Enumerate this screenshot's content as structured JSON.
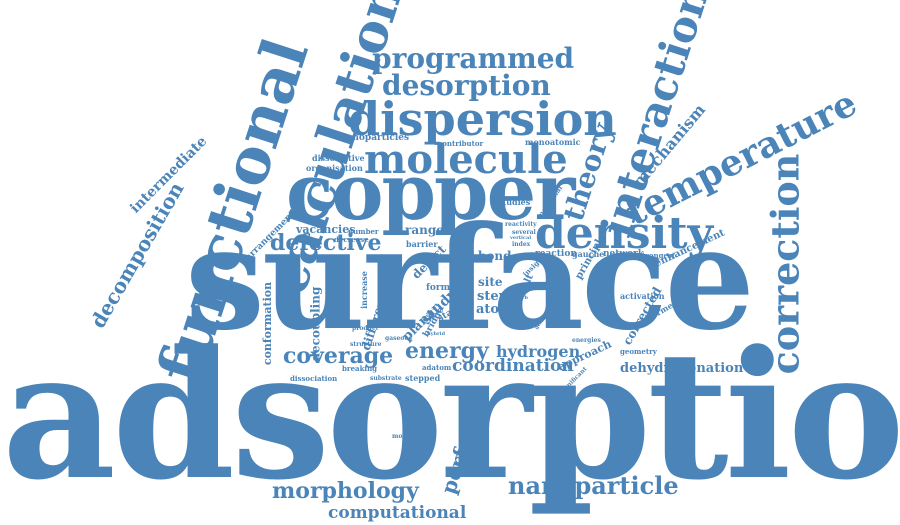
{
  "color": "#4a84b8",
  "words": [
    {
      "text": "adsorption",
      "size": "large"
    },
    {
      "text": "surface",
      "size": "large"
    },
    {
      "text": "copper",
      "size": "large"
    },
    {
      "text": "functional",
      "size": "large"
    },
    {
      "text": "calculation",
      "size": "large"
    },
    {
      "text": "dispersion",
      "size": "large"
    },
    {
      "text": "molecule",
      "size": "large"
    },
    {
      "text": "density",
      "size": "large"
    },
    {
      "text": "interaction",
      "size": "large"
    },
    {
      "text": "temperature",
      "size": "large"
    },
    {
      "text": "correction",
      "size": "large"
    },
    {
      "text": "programmed",
      "size": "medium"
    },
    {
      "text": "desorption",
      "size": "medium"
    },
    {
      "text": "theory",
      "size": "medium"
    },
    {
      "text": "energy",
      "size": "medium"
    },
    {
      "text": "coverage",
      "size": "medium"
    },
    {
      "text": "defective",
      "size": "medium"
    },
    {
      "text": "decomposition",
      "size": "medium"
    },
    {
      "text": "intermediate",
      "size": "medium"
    },
    {
      "text": "mechanism",
      "size": "medium"
    },
    {
      "text": "morphology",
      "size": "medium"
    },
    {
      "text": "nanoparticle",
      "size": "medium"
    },
    {
      "text": "computational",
      "size": "medium"
    },
    {
      "text": "perfect",
      "size": "medium"
    },
    {
      "text": "coordination",
      "size": "medium"
    },
    {
      "text": "hydrogen",
      "size": "medium"
    },
    {
      "text": "dehydrogenation",
      "size": "medium"
    },
    {
      "text": "corrected",
      "size": "small"
    },
    {
      "text": "conformation",
      "size": "small"
    },
    {
      "text": "decoupling",
      "size": "small"
    },
    {
      "text": "different",
      "size": "small"
    },
    {
      "text": "planar",
      "size": "small"
    },
    {
      "text": "study",
      "size": "small"
    },
    {
      "text": "atom",
      "size": "small"
    },
    {
      "text": "step",
      "size": "small"
    },
    {
      "text": "site",
      "size": "small"
    },
    {
      "text": "bond",
      "size": "small"
    },
    {
      "text": "defect",
      "size": "small"
    },
    {
      "text": "range",
      "size": "small"
    },
    {
      "text": "vacancies",
      "size": "small"
    },
    {
      "text": "arrangement",
      "size": "small"
    },
    {
      "text": "approach",
      "size": "small"
    },
    {
      "text": "principle",
      "size": "small"
    },
    {
      "text": "enhancement",
      "size": "small"
    },
    {
      "text": "network",
      "size": "small"
    },
    {
      "text": "reaction",
      "size": "small"
    },
    {
      "text": "gauche",
      "size": "small"
    },
    {
      "text": "strongest",
      "size": "small"
    },
    {
      "text": "nanoparticles",
      "size": "small"
    },
    {
      "text": "dissociative",
      "size": "small"
    },
    {
      "text": "organisation",
      "size": "small"
    },
    {
      "text": "contributor",
      "size": "small"
    },
    {
      "text": "monoatomic",
      "size": "small"
    },
    {
      "text": "studies",
      "size": "small"
    },
    {
      "text": "molecular",
      "size": "small"
    },
    {
      "text": "reactivity",
      "size": "small"
    },
    {
      "text": "several",
      "size": "small"
    },
    {
      "text": "vertical",
      "size": "small"
    },
    {
      "text": "index",
      "size": "small"
    },
    {
      "text": "barrier",
      "size": "small"
    },
    {
      "text": "decrease",
      "size": "small"
    },
    {
      "text": "number",
      "size": "small"
    },
    {
      "text": "increase",
      "size": "small"
    },
    {
      "text": "form",
      "size": "small"
    },
    {
      "text": "bridge",
      "size": "small"
    },
    {
      "text": "stable",
      "size": "small"
    },
    {
      "text": "result",
      "size": "small"
    },
    {
      "text": "insight",
      "size": "small"
    },
    {
      "text": "activation",
      "size": "small"
    },
    {
      "text": "conformer",
      "size": "small"
    },
    {
      "text": "geometry",
      "size": "small"
    },
    {
      "text": "energies",
      "size": "small"
    },
    {
      "text": "significant",
      "size": "small"
    },
    {
      "text": "structure",
      "size": "small"
    },
    {
      "text": "gaseous",
      "size": "small"
    },
    {
      "text": "product",
      "size": "small"
    },
    {
      "text": "breaking",
      "size": "small"
    },
    {
      "text": "adatom",
      "size": "small"
    },
    {
      "text": "stepped",
      "size": "small"
    },
    {
      "text": "substrate",
      "size": "small"
    },
    {
      "text": "dissociation",
      "size": "small"
    },
    {
      "text": "monolayer",
      "size": "small"
    },
    {
      "text": "general",
      "size": "small"
    },
    {
      "text": "adsorb",
      "size": "small"
    },
    {
      "text": "nitrogen",
      "size": "small"
    },
    {
      "text": "hybrid",
      "size": "small"
    }
  ]
}
